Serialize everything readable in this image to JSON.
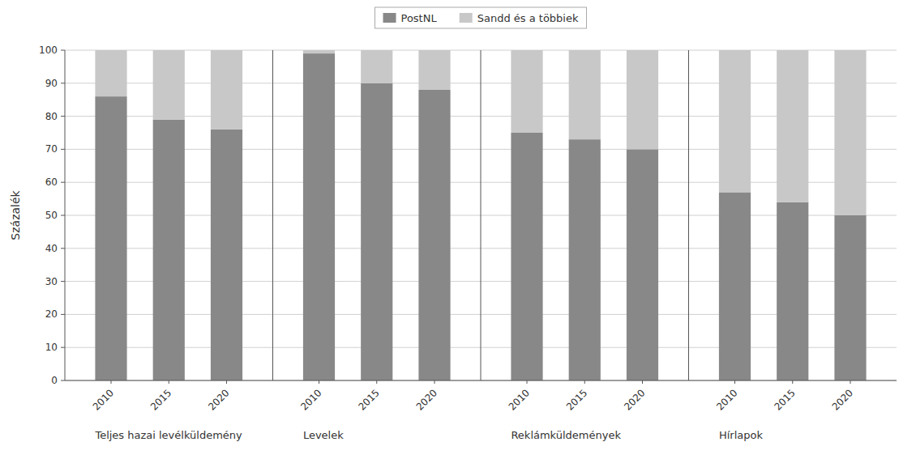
{
  "chart_data": {
    "type": "bar",
    "stacked": true,
    "categories": [
      "2010",
      "2015",
      "2020",
      "2010",
      "2015",
      "2020",
      "2010",
      "2015",
      "2020",
      "2010",
      "2015",
      "2020"
    ],
    "group_labels": [
      "Teljes hazai levélküldemény",
      "Levelek",
      "Reklámküldemények",
      "Hírlapok"
    ],
    "series": [
      {
        "name": "PostNL",
        "color": "#888888",
        "values": [
          86,
          79,
          76,
          99,
          90,
          88,
          75,
          73,
          70,
          57,
          54,
          50
        ]
      },
      {
        "name": "Sandd és a többiek",
        "color": "#c8c8c8",
        "values": [
          14,
          21,
          24,
          1,
          10,
          12,
          25,
          27,
          30,
          43,
          46,
          50
        ]
      }
    ],
    "y_label": "Százalék",
    "ylim": [
      0,
      100
    ],
    "yticks": [
      0,
      10,
      20,
      30,
      40,
      50,
      60,
      70,
      80,
      90,
      100
    ],
    "grid": true,
    "legend": "top"
  }
}
